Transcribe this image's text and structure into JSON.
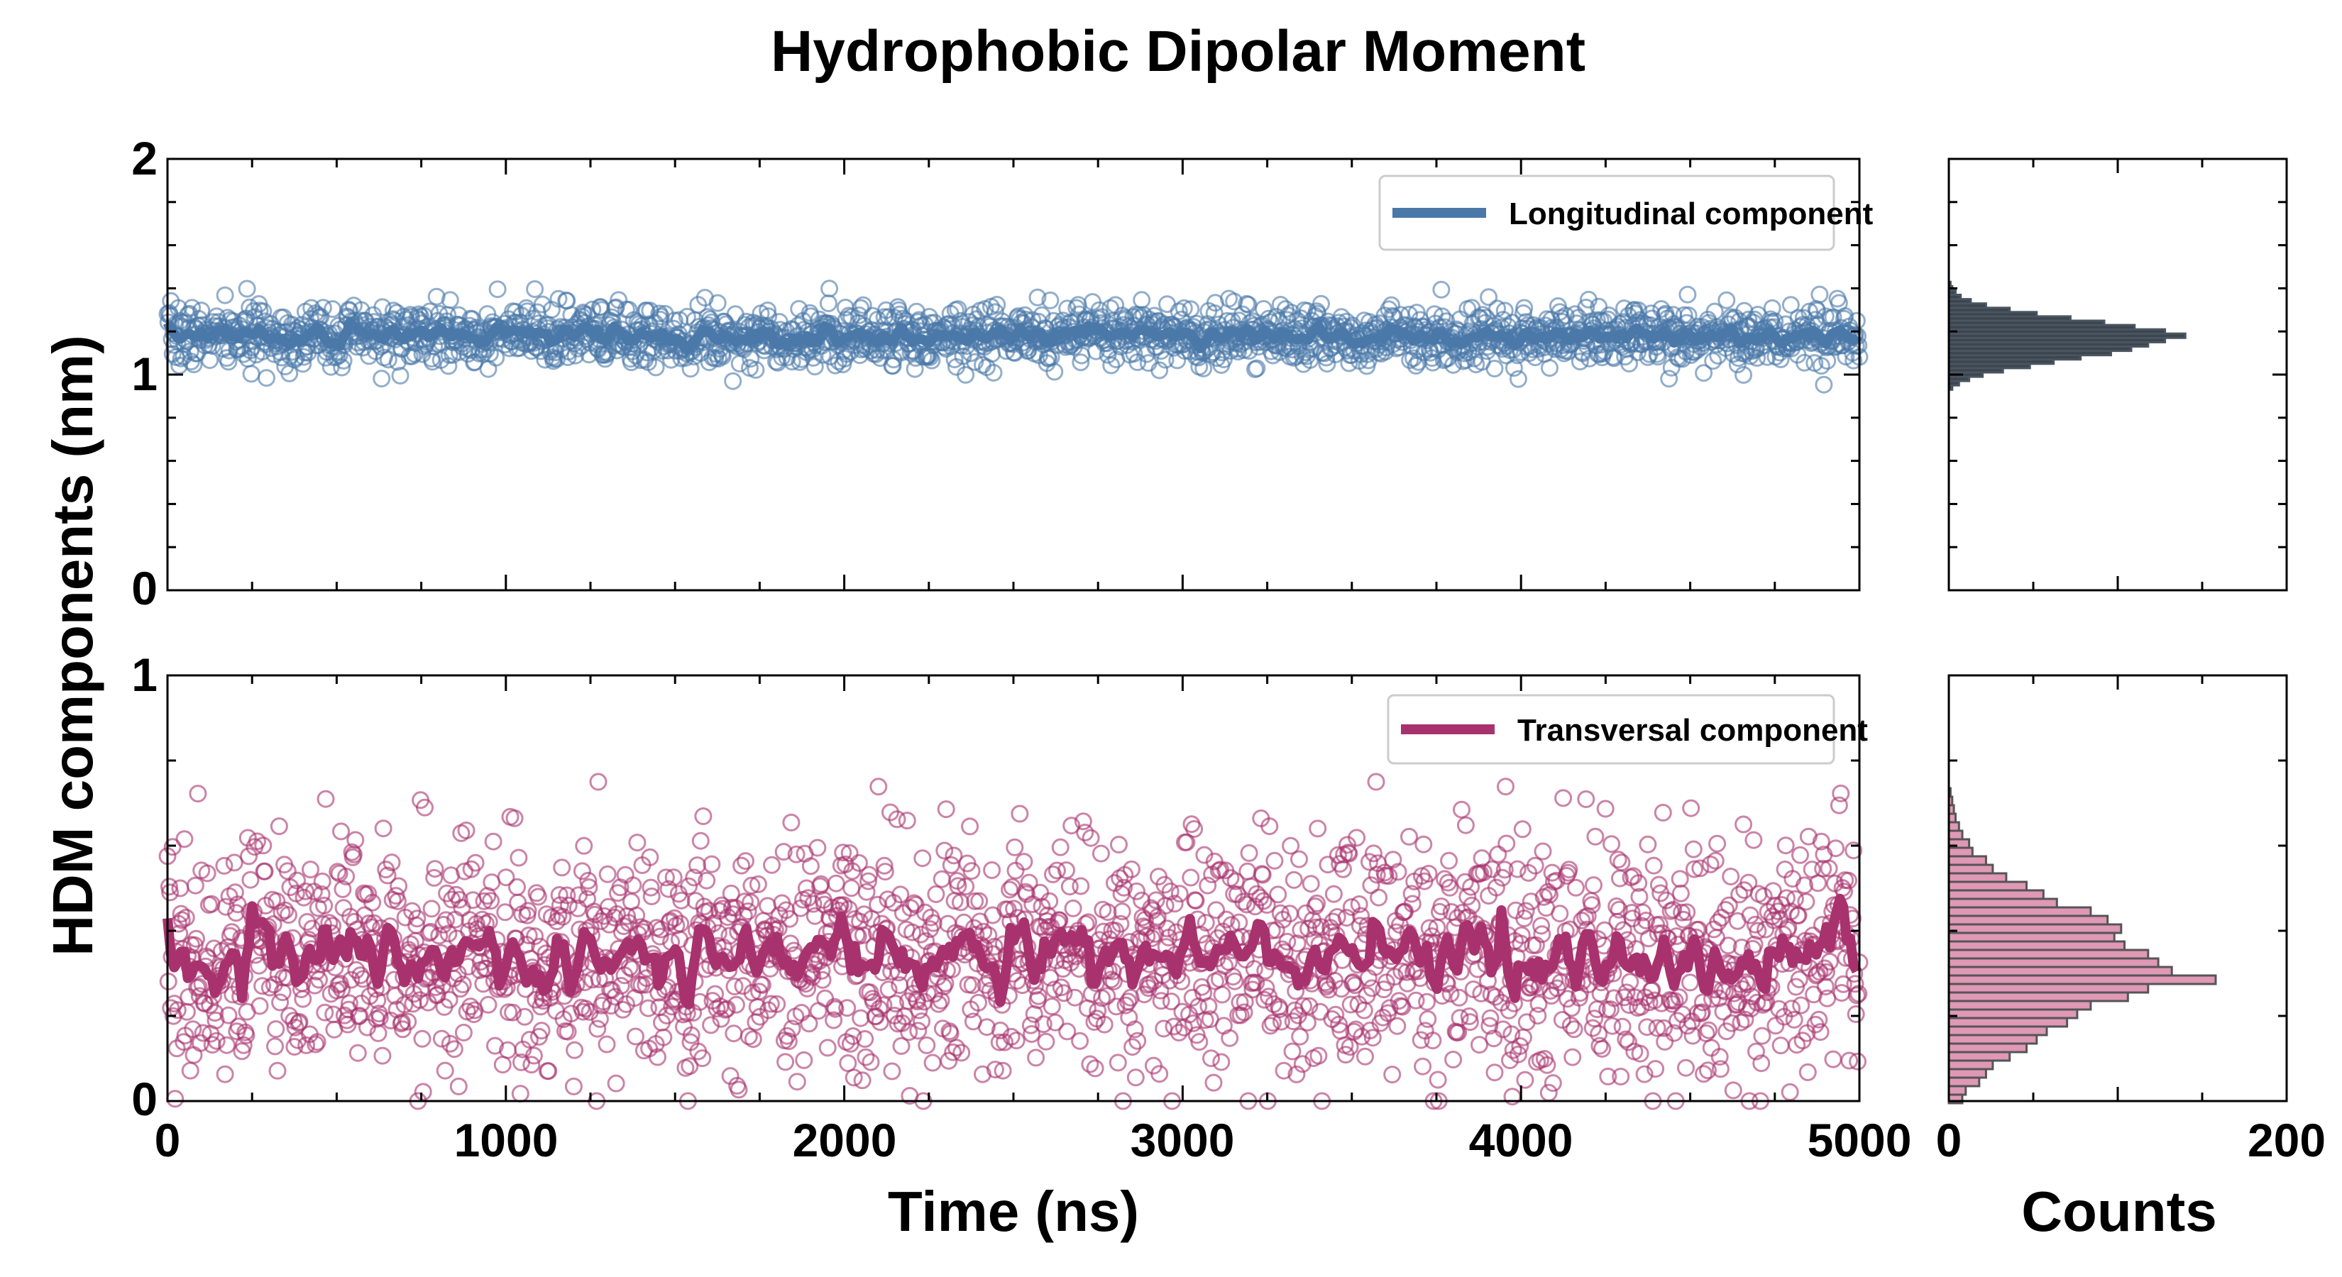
{
  "chart_data": [
    {
      "type": "scatter",
      "title": "Hydrophobic Dipolar Moment",
      "xlabel": "Time (ns)",
      "ylabel": "HDM components (nm)",
      "xlim": [
        0,
        5000
      ],
      "ylim": [
        0,
        2
      ],
      "xticks": [
        "0",
        "1000",
        "2000",
        "3000",
        "4000",
        "5000"
      ],
      "yticks": [
        "0",
        "1",
        "2"
      ],
      "legend_location": "top-right",
      "series": [
        {
          "name": "Longitudinal component",
          "color": "#4a78a8",
          "render": "open-circle markers with a thick running-mean line",
          "mean": 1.18,
          "spread_sd": 0.07,
          "min_value": 0.95,
          "max_value": 1.45,
          "points": 2000
        }
      ]
    },
    {
      "type": "scatter",
      "xlabel": "Time (ns)",
      "xlim": [
        0,
        5000
      ],
      "ylim": [
        0,
        1
      ],
      "xticks": [
        "0",
        "1000",
        "2000",
        "3000",
        "4000",
        "5000"
      ],
      "yticks": [
        "0",
        "1"
      ],
      "legend_location": "top-right",
      "series": [
        {
          "name": "Transversal component",
          "color": "#a8326e",
          "render": "open-circle markers with a thick running-mean line",
          "mean": 0.34,
          "spread_sd": 0.14,
          "min_value": 0.0,
          "max_value": 0.75,
          "points": 2000
        }
      ]
    },
    {
      "type": "bar",
      "orientation": "horizontal",
      "xlabel": "Counts",
      "xlim": [
        0,
        200
      ],
      "xticks": [
        "0",
        "200"
      ],
      "ylim": [
        0,
        2
      ],
      "color": "#1a2530",
      "bins": [
        {
          "y": 0.94,
          "count": 2
        },
        {
          "y": 0.96,
          "count": 6
        },
        {
          "y": 0.98,
          "count": 12
        },
        {
          "y": 1.0,
          "count": 20
        },
        {
          "y": 1.02,
          "count": 32
        },
        {
          "y": 1.04,
          "count": 48
        },
        {
          "y": 1.06,
          "count": 62
        },
        {
          "y": 1.08,
          "count": 78
        },
        {
          "y": 1.1,
          "count": 96
        },
        {
          "y": 1.12,
          "count": 108
        },
        {
          "y": 1.14,
          "count": 118
        },
        {
          "y": 1.16,
          "count": 128
        },
        {
          "y": 1.18,
          "count": 140
        },
        {
          "y": 1.2,
          "count": 128
        },
        {
          "y": 1.22,
          "count": 110
        },
        {
          "y": 1.24,
          "count": 92
        },
        {
          "y": 1.26,
          "count": 72
        },
        {
          "y": 1.28,
          "count": 52
        },
        {
          "y": 1.3,
          "count": 36
        },
        {
          "y": 1.32,
          "count": 22
        },
        {
          "y": 1.34,
          "count": 13
        },
        {
          "y": 1.36,
          "count": 7
        },
        {
          "y": 1.38,
          "count": 4
        },
        {
          "y": 1.4,
          "count": 2
        },
        {
          "y": 1.42,
          "count": 1
        }
      ]
    },
    {
      "type": "bar",
      "orientation": "horizontal",
      "xlabel": "Counts",
      "xlim": [
        0,
        200
      ],
      "xticks": [
        "0",
        "200"
      ],
      "ylim": [
        0,
        1
      ],
      "color": "#d986a8",
      "bins": [
        {
          "y": 0.005,
          "count": 8
        },
        {
          "y": 0.025,
          "count": 10
        },
        {
          "y": 0.045,
          "count": 18
        },
        {
          "y": 0.065,
          "count": 22
        },
        {
          "y": 0.085,
          "count": 26
        },
        {
          "y": 0.105,
          "count": 36
        },
        {
          "y": 0.125,
          "count": 46
        },
        {
          "y": 0.145,
          "count": 52
        },
        {
          "y": 0.165,
          "count": 58
        },
        {
          "y": 0.185,
          "count": 70
        },
        {
          "y": 0.205,
          "count": 76
        },
        {
          "y": 0.225,
          "count": 84
        },
        {
          "y": 0.245,
          "count": 106
        },
        {
          "y": 0.265,
          "count": 118
        },
        {
          "y": 0.285,
          "count": 158
        },
        {
          "y": 0.305,
          "count": 132
        },
        {
          "y": 0.325,
          "count": 124
        },
        {
          "y": 0.345,
          "count": 118
        },
        {
          "y": 0.365,
          "count": 104
        },
        {
          "y": 0.385,
          "count": 98
        },
        {
          "y": 0.405,
          "count": 102
        },
        {
          "y": 0.425,
          "count": 94
        },
        {
          "y": 0.445,
          "count": 84
        },
        {
          "y": 0.465,
          "count": 64
        },
        {
          "y": 0.485,
          "count": 56
        },
        {
          "y": 0.505,
          "count": 46
        },
        {
          "y": 0.525,
          "count": 34
        },
        {
          "y": 0.545,
          "count": 26
        },
        {
          "y": 0.565,
          "count": 22
        },
        {
          "y": 0.585,
          "count": 14
        },
        {
          "y": 0.605,
          "count": 12
        },
        {
          "y": 0.625,
          "count": 8
        },
        {
          "y": 0.645,
          "count": 6
        },
        {
          "y": 0.665,
          "count": 4
        },
        {
          "y": 0.685,
          "count": 3
        },
        {
          "y": 0.705,
          "count": 2
        },
        {
          "y": 0.725,
          "count": 1
        }
      ]
    }
  ]
}
